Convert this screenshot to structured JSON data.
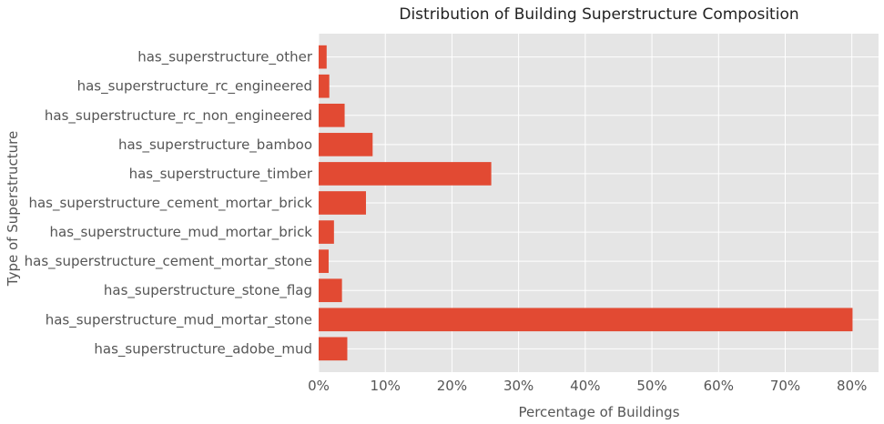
{
  "chart_data": {
    "type": "bar",
    "orientation": "horizontal",
    "title": "Distribution of Building Superstructure Composition",
    "xlabel": "Percentage of Buildings",
    "ylabel": "Type of Superstructure",
    "xlim": [
      0,
      84
    ],
    "x_ticks": [
      0,
      10,
      20,
      30,
      40,
      50,
      60,
      70,
      80
    ],
    "x_tick_suffix": "%",
    "grid": true,
    "legend": "none",
    "categories": [
      "has_superstructure_adobe_mud",
      "has_superstructure_mud_mortar_stone",
      "has_superstructure_stone_flag",
      "has_superstructure_cement_mortar_stone",
      "has_superstructure_mud_mortar_brick",
      "has_superstructure_cement_mortar_brick",
      "has_superstructure_timber",
      "has_superstructure_bamboo",
      "has_superstructure_rc_non_engineered",
      "has_superstructure_rc_engineered",
      "has_superstructure_other"
    ],
    "values": [
      4.3,
      80.1,
      3.5,
      1.5,
      2.3,
      7.1,
      25.9,
      8.1,
      3.9,
      1.6,
      1.2
    ],
    "colors": {
      "bar": "#E24A33",
      "plot_background": "#E5E5E5",
      "grid": "#FFFFFF",
      "text": "#555555"
    }
  }
}
